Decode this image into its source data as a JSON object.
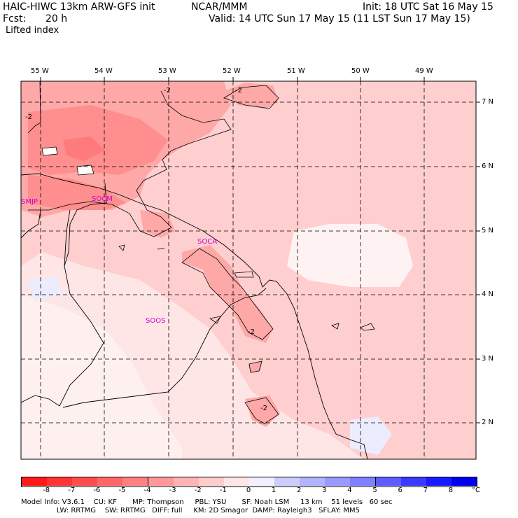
{
  "header": {
    "model_title": "HAIC-HIWC 13km ARW-GFS init",
    "org": "NCAR/MMM",
    "init": "Init: 18 UTC Sat 16 May 15",
    "fcst_label": "Fcst:",
    "fcst_value": "20 h",
    "valid": "Valid: 14 UTC Sun 17 May 15 (11 LST Sun 17 May 15)",
    "field": "Lifted index"
  },
  "map": {
    "lon_labels": [
      "55 W",
      "54 W",
      "53 W",
      "52 W",
      "51 W",
      "50 W",
      "49 W"
    ],
    "lat_labels": [
      "7 N",
      "6 N",
      "5 N",
      "4 N",
      "3 N",
      "2 N"
    ],
    "contour_labels": [
      "-2",
      "-2",
      "-2",
      "-2",
      "-2"
    ],
    "stations": [
      "SMJP",
      "SOCM",
      "SOCA",
      "SOOS"
    ]
  },
  "colorbar": {
    "ticks": [
      "-8",
      "-7",
      "-6",
      "-5",
      "-4",
      "-3",
      "-2",
      "-1",
      "0",
      "1",
      "2",
      "3",
      "4",
      "5",
      "6",
      "7",
      "8"
    ],
    "unit": "°C",
    "colors": [
      "#ff1a1a",
      "#ff3333",
      "#ff4d4d",
      "#ff6666",
      "#ff8080",
      "#ff9999",
      "#ffb3b3",
      "#ffcccc",
      "#ffe6e6",
      "#f0f0ff",
      "#ccccff",
      "#b3b3ff",
      "#9999ff",
      "#7f7fff",
      "#5c5cff",
      "#3a3aff",
      "#1a1aff",
      "#0000ee"
    ]
  },
  "footer": {
    "line1": "Model Info: V3.6.1    CU: KF       MP: Thompson     PBL: YSU       SF: Noah LSM     13 km    51 levels   60 sec",
    "line2": "                LW: RRTMG    SW: RRTMG   DIFF: full     KM: 2D Smagor  DAMP: Rayleigh3   SFLAY: MM5"
  }
}
